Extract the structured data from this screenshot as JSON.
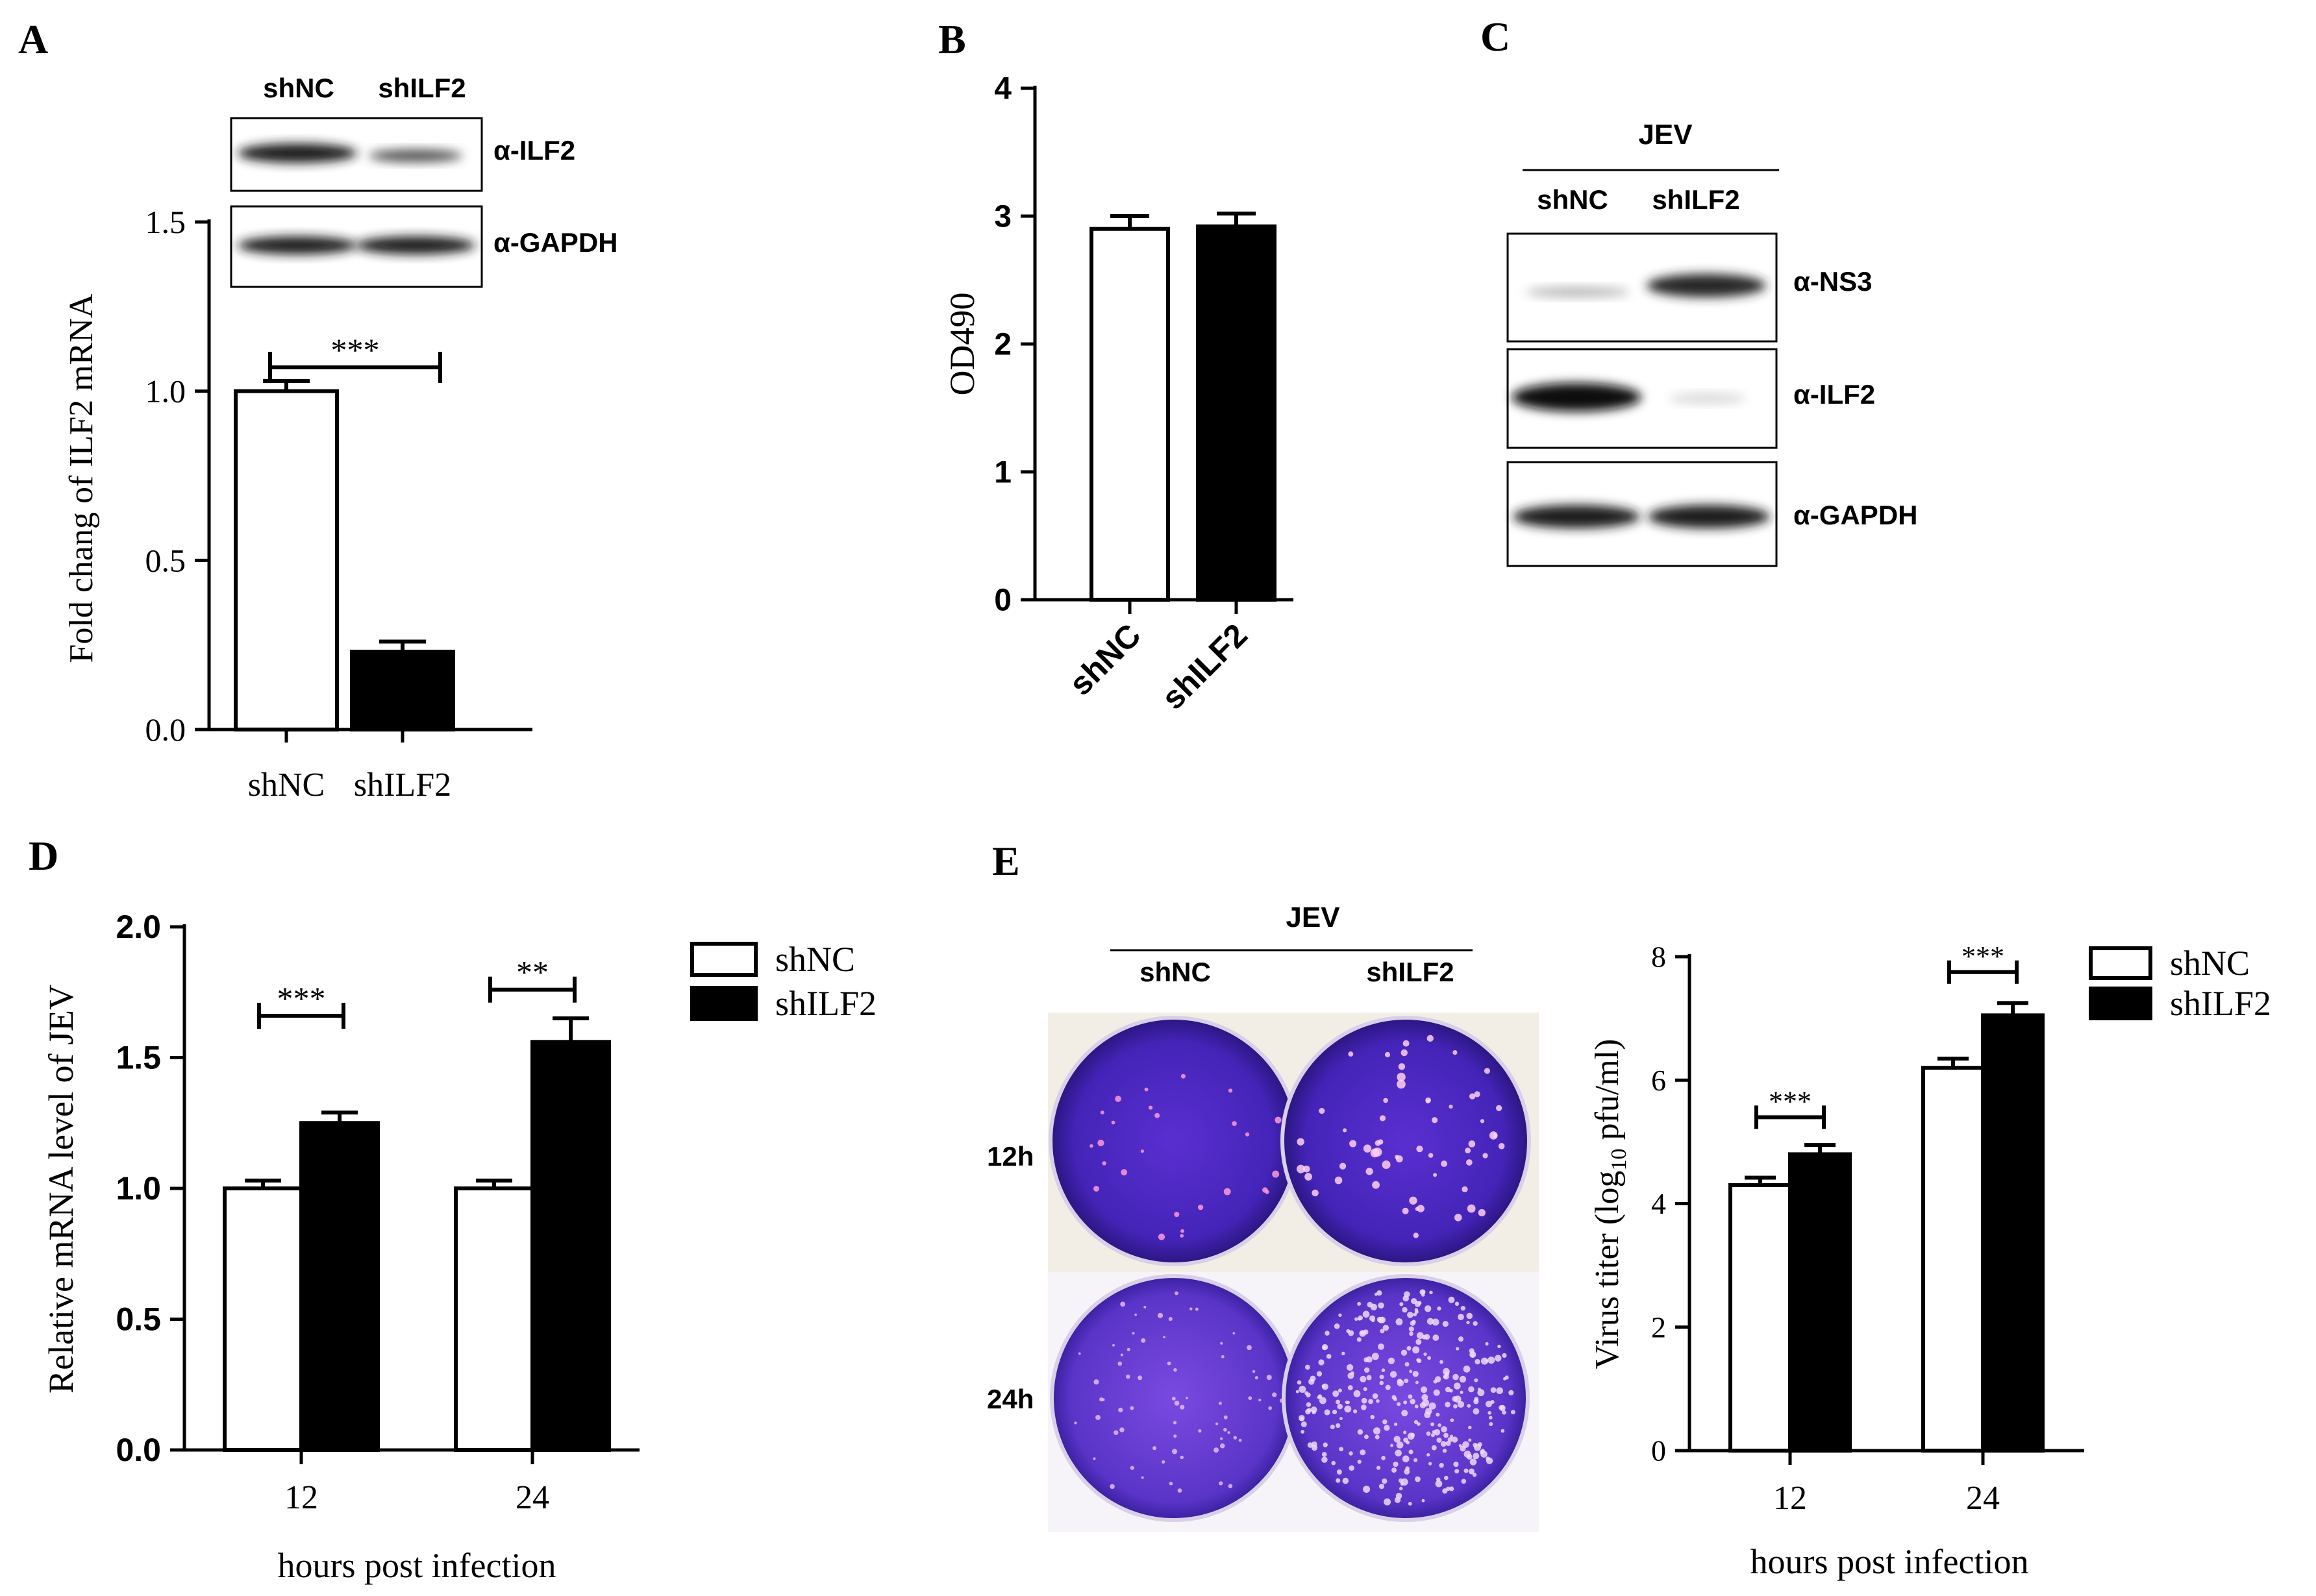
{
  "panels": {
    "A": {
      "label": "A",
      "blot": {
        "lanes": [
          "shNC",
          "shILF2"
        ],
        "rows": [
          "α-ILF2",
          "α-GAPDH"
        ]
      },
      "chart_data": {
        "type": "bar",
        "categories": [
          "shNC",
          "shILF2"
        ],
        "values": [
          1.0,
          0.23
        ],
        "errors": [
          0.03,
          0.03
        ],
        "ylabel": "Fold chang of ILF2 mRNA",
        "ylim": [
          0,
          1.5
        ],
        "yticks": [
          "0.0",
          "0.5",
          "1.0",
          "1.5"
        ],
        "significance": "***",
        "colors": [
          "#ffffff",
          "#000000"
        ]
      }
    },
    "B": {
      "label": "B",
      "chart_data": {
        "type": "bar",
        "categories": [
          "shNC",
          "shILF2"
        ],
        "values": [
          2.9,
          2.92
        ],
        "errors": [
          0.1,
          0.1
        ],
        "ylabel": "OD490",
        "ylim": [
          0,
          4
        ],
        "yticks": [
          "0",
          "1",
          "2",
          "3",
          "4"
        ],
        "colors": [
          "#ffffff",
          "#000000"
        ]
      }
    },
    "C": {
      "label": "C",
      "blot": {
        "header": "JEV",
        "lanes": [
          "shNC",
          "shILF2"
        ],
        "rows": [
          "α-NS3",
          "α-ILF2",
          "α-GAPDH"
        ]
      }
    },
    "D": {
      "label": "D",
      "chart_data": {
        "type": "bar",
        "categories": [
          "12",
          "24"
        ],
        "series": [
          {
            "name": "shNC",
            "values": [
              1.0,
              1.0
            ],
            "errors": [
              0.03,
              0.03
            ]
          },
          {
            "name": "shILF2",
            "values": [
              1.25,
              1.56
            ],
            "errors": [
              0.04,
              0.09
            ]
          }
        ],
        "xlabel": "hours post infection",
        "ylabel": "Relative mRNA level of JEV",
        "ylim": [
          0,
          2.0
        ],
        "yticks": [
          "0.0",
          "0.5",
          "1.0",
          "1.5",
          "2.0"
        ],
        "significance": [
          "***",
          "**"
        ],
        "legend": "top-right"
      }
    },
    "E": {
      "label": "E",
      "plaque": {
        "header": "JEV",
        "columns": [
          "shNC",
          "shILF2"
        ],
        "rows": [
          "12h",
          "24h"
        ]
      },
      "chart_data": {
        "type": "bar",
        "categories": [
          "12",
          "24"
        ],
        "series": [
          {
            "name": "shNC",
            "values": [
              4.3,
              6.2
            ],
            "errors": [
              0.12,
              0.15
            ]
          },
          {
            "name": "shILF2",
            "values": [
              4.8,
              7.05
            ],
            "errors": [
              0.15,
              0.2
            ]
          }
        ],
        "xlabel": "hours post infection",
        "ylabel": "Virus titer (log",
        "ylabel_sub": "10",
        "ylabel_tail": " pfu/ml)",
        "ylim": [
          0,
          8
        ],
        "yticks": [
          "0",
          "2",
          "4",
          "6",
          "8"
        ],
        "significance": [
          "***",
          "***"
        ],
        "legend": "top-right"
      }
    }
  }
}
